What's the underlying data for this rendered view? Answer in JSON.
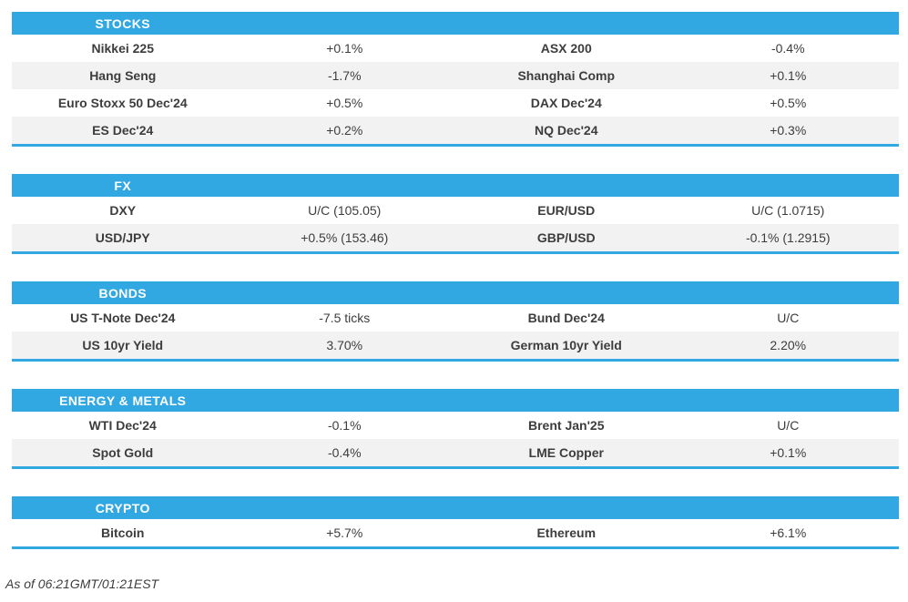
{
  "colors": {
    "accent": "#31a8e1",
    "row_alt": "#f2f2f2",
    "text": "#3d3d3d",
    "header_text": "#ffffff"
  },
  "sections": [
    {
      "title": "STOCKS",
      "rows": [
        [
          {
            "name": "Nikkei 225",
            "value": "+0.1%"
          },
          {
            "name": "ASX 200",
            "value": "-0.4%"
          }
        ],
        [
          {
            "name": "Hang Seng",
            "value": "-1.7%"
          },
          {
            "name": "Shanghai Comp",
            "value": "+0.1%"
          }
        ],
        [
          {
            "name": "Euro Stoxx 50 Dec'24",
            "value": "+0.5%"
          },
          {
            "name": "DAX Dec'24",
            "value": "+0.5%"
          }
        ],
        [
          {
            "name": "ES Dec'24",
            "value": "+0.2%"
          },
          {
            "name": "NQ Dec'24",
            "value": "+0.3%"
          }
        ]
      ]
    },
    {
      "title": "FX",
      "rows": [
        [
          {
            "name": "DXY",
            "value": "U/C (105.05)"
          },
          {
            "name": "EUR/USD",
            "value": "U/C (1.0715)"
          }
        ],
        [
          {
            "name": "USD/JPY",
            "value": "+0.5% (153.46)"
          },
          {
            "name": "GBP/USD",
            "value": "-0.1% (1.2915)"
          }
        ]
      ]
    },
    {
      "title": "BONDS",
      "rows": [
        [
          {
            "name": "US T-Note Dec'24",
            "value": "-7.5 ticks"
          },
          {
            "name": "Bund Dec'24",
            "value": "U/C"
          }
        ],
        [
          {
            "name": "US 10yr Yield",
            "value": "3.70%"
          },
          {
            "name": "German 10yr Yield",
            "value": "2.20%"
          }
        ]
      ]
    },
    {
      "title": "ENERGY & METALS",
      "rows": [
        [
          {
            "name": "WTI Dec'24",
            "value": "-0.1%"
          },
          {
            "name": "Brent Jan'25",
            "value": "U/C"
          }
        ],
        [
          {
            "name": "Spot Gold",
            "value": "-0.4%"
          },
          {
            "name": "LME Copper",
            "value": "+0.1%"
          }
        ]
      ]
    },
    {
      "title": "CRYPTO",
      "rows": [
        [
          {
            "name": "Bitcoin",
            "value": "+5.7%"
          },
          {
            "name": "Ethereum",
            "value": "+6.1%"
          }
        ]
      ]
    }
  ],
  "footer": {
    "text": "As of 06:21GMT/01:21EST"
  }
}
